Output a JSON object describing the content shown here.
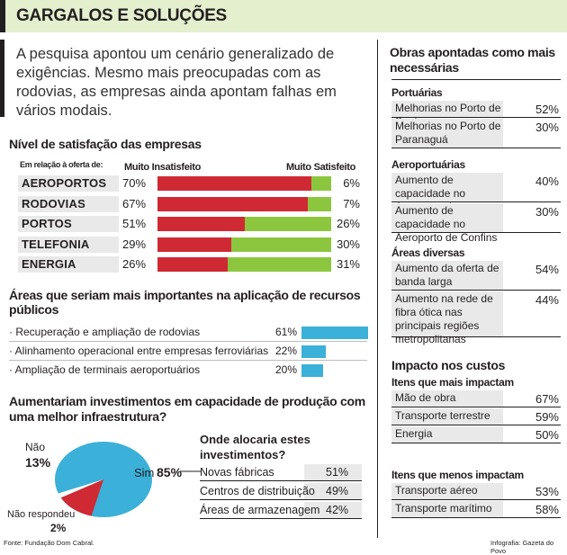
{
  "title": "GARGALOS E SOLUÇÕES",
  "intro": "A pesquisa apontou um cenário generalizado de exigências. Mesmo mais preocupadas com as rodovias, as empresas ainda apontam falhas em vários modais.",
  "colors": {
    "red": "#cf2a33",
    "green": "#8cc63f",
    "gray": "#d9d9d9",
    "blue": "#3bb0d8",
    "title_bg": "#e4efce"
  },
  "chart_data": [
    {
      "type": "bar",
      "title": "Nível de satisfação das empresas",
      "subtitle": "Em relação à oferta de:",
      "left_label": "Muito Insatisfeito",
      "right_label": "Muito Satisfeito",
      "categories": [
        "AEROPORTOS",
        "RODOVIAS",
        "PORTOS",
        "TELEFONIA",
        "ENERGIA"
      ],
      "series": [
        {
          "name": "Muito Insatisfeito",
          "values": [
            70,
            67,
            51,
            29,
            26
          ]
        },
        {
          "name": "Muito Satisfeito",
          "values": [
            6,
            7,
            26,
            30,
            31
          ]
        }
      ],
      "value_labels_left": [
        "70%",
        "67%",
        "51%",
        "29%",
        "26%"
      ],
      "value_labels_right": [
        "6%",
        "7%",
        "26%",
        "30%",
        "31%"
      ]
    },
    {
      "type": "bar",
      "title": "Áreas que seriam mais importantes na aplicação de recursos públicos",
      "categories": [
        "Recuperação e ampliação de rodovias",
        "Alinhamento operacional entre empresas ferroviárias",
        "Ampliação de terminais aeroportuários"
      ],
      "values": [
        61,
        22,
        20
      ],
      "value_labels": [
        "61%",
        "22%",
        "20%"
      ]
    },
    {
      "type": "pie",
      "title": "Aumentariam investimentos em capacidade de produção com uma melhor infraestrutura?",
      "labels": [
        "Sim",
        "Não",
        "Não respondeu"
      ],
      "values": [
        85,
        13,
        2
      ],
      "value_labels": [
        "85%",
        "13%",
        "2%"
      ]
    },
    {
      "type": "table",
      "title": "Onde alocaria estes investimentos?",
      "rows": [
        [
          "Novas fábricas",
          "51%"
        ],
        [
          "Centros de distribuição",
          "49%"
        ],
        [
          "Áreas de armazenagem",
          "42%"
        ]
      ]
    }
  ],
  "right": {
    "obras_title": "Obras apontadas como mais necessárias",
    "portuarias": {
      "title": "Portuárias",
      "items": [
        [
          "Melhorias no Porto de Santos",
          "52%"
        ],
        [
          "Melhorias no Porto de Paranaguá",
          "30%"
        ]
      ]
    },
    "aeroportuarias": {
      "title": "Aeroportuárias",
      "items": [
        [
          "Aumento de capacidade no Aeroporto de Guarulhos",
          "40%"
        ],
        [
          "Aumento de capacidade no Aeroporto de Confins",
          "30%"
        ]
      ]
    },
    "diversas": {
      "title": "Áreas diversas",
      "items": [
        [
          "Aumento da oferta de banda larga",
          "54%"
        ],
        [
          "Aumento na rede de fibra ótica nas principais regiões metropolitanas",
          "44%"
        ]
      ]
    },
    "impacto_title": "Impacto nos custos",
    "mais": {
      "title": "Itens que mais impactam",
      "items": [
        [
          "Mão de obra",
          "67%"
        ],
        [
          "Transporte terrestre",
          "59%"
        ],
        [
          "Energia",
          "50%"
        ]
      ]
    },
    "menos": {
      "title": "Itens que menos impactam",
      "items": [
        [
          "Transporte aéreo",
          "53%"
        ],
        [
          "Transporte marítimo",
          "58%"
        ]
      ]
    }
  },
  "footer": {
    "source": "Fonte: Fundação Dom Cabral.",
    "credit": "Infografia: Gazeta do Povo"
  }
}
